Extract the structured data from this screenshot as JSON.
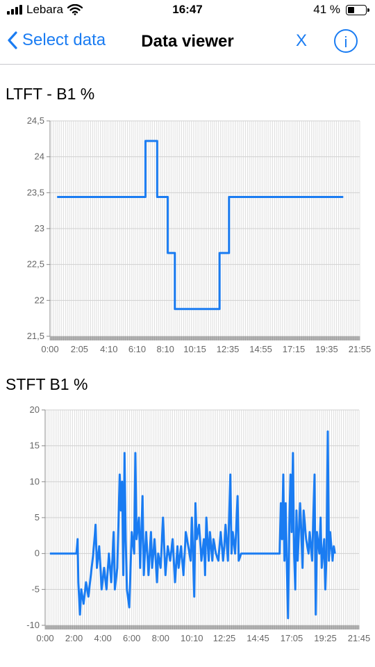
{
  "status_bar": {
    "carrier": "Lebara",
    "time": "16:47",
    "battery_percent": "41 %",
    "battery_level": 0.41
  },
  "nav": {
    "back_label": "Select data",
    "title": "Data viewer",
    "close_label": "X",
    "info_label": "i"
  },
  "chart_data": [
    {
      "type": "line",
      "title": "LTFT - B1   %",
      "xlabel": "",
      "ylabel": "",
      "ylim": [
        21.5,
        24.5
      ],
      "yticks": [
        "21,5",
        "22",
        "22,5",
        "23",
        "23,5",
        "24",
        "24,5"
      ],
      "xticks": [
        "0:00",
        "2:05",
        "4:10",
        "6:10",
        "8:10",
        "10:15",
        "12:35",
        "14:55",
        "17:15",
        "19:35",
        "21:55"
      ],
      "grid": true,
      "series": [
        {
          "color": "#1a7cf2",
          "points": [
            [
              "0:30",
              23.44
            ],
            [
              "6:45",
              23.44
            ],
            [
              "6:45",
              24.22
            ],
            [
              "7:35",
              24.22
            ],
            [
              "7:35",
              23.44
            ],
            [
              "8:20",
              23.44
            ],
            [
              "8:20",
              22.66
            ],
            [
              "8:50",
              22.66
            ],
            [
              "8:50",
              21.88
            ],
            [
              "12:00",
              21.88
            ],
            [
              "12:00",
              22.66
            ],
            [
              "12:40",
              22.66
            ],
            [
              "12:40",
              23.44
            ],
            [
              "20:45",
              23.44
            ]
          ]
        }
      ]
    },
    {
      "type": "line",
      "title": "STFT B1   %",
      "xlabel": "",
      "ylabel": "",
      "ylim": [
        -10,
        20
      ],
      "yticks": [
        "-10",
        "-5",
        "0",
        "5",
        "10",
        "15",
        "20"
      ],
      "xticks": [
        "0:00",
        "2:00",
        "4:00",
        "6:00",
        "8:00",
        "10:10",
        "12:25",
        "14:45",
        "17:05",
        "19:25",
        "21:45"
      ],
      "grid": true,
      "series": [
        {
          "color": "#1a7cf2",
          "points": [
            [
              "0:20",
              0
            ],
            [
              "2:10",
              0
            ],
            [
              "2:15",
              2
            ],
            [
              "2:18",
              -4
            ],
            [
              "2:25",
              -8.5
            ],
            [
              "2:30",
              -5
            ],
            [
              "2:40",
              -7
            ],
            [
              "2:50",
              -4
            ],
            [
              "3:00",
              -6
            ],
            [
              "3:10",
              -3
            ],
            [
              "3:20",
              0
            ],
            [
              "3:30",
              4
            ],
            [
              "3:35",
              -2
            ],
            [
              "3:45",
              1
            ],
            [
              "3:55",
              -5
            ],
            [
              "4:05",
              -2
            ],
            [
              "4:15",
              -5
            ],
            [
              "4:25",
              0
            ],
            [
              "4:35",
              -4
            ],
            [
              "4:45",
              3
            ],
            [
              "4:50",
              -5
            ],
            [
              "5:00",
              -2
            ],
            [
              "5:10",
              11
            ],
            [
              "5:15",
              6
            ],
            [
              "5:20",
              10
            ],
            [
              "5:25",
              -3
            ],
            [
              "5:30",
              14
            ],
            [
              "5:35",
              2
            ],
            [
              "5:40",
              -5
            ],
            [
              "5:50",
              -7.5
            ],
            [
              "5:55",
              -2
            ],
            [
              "6:00",
              3
            ],
            [
              "6:10",
              0
            ],
            [
              "6:15",
              14
            ],
            [
              "6:20",
              2
            ],
            [
              "6:30",
              5
            ],
            [
              "6:35",
              -2
            ],
            [
              "6:45",
              8
            ],
            [
              "6:50",
              -3
            ],
            [
              "7:00",
              3
            ],
            [
              "7:10",
              -3
            ],
            [
              "7:20",
              3
            ],
            [
              "7:25",
              -2
            ],
            [
              "7:35",
              2
            ],
            [
              "7:45",
              -4
            ],
            [
              "7:50",
              0
            ],
            [
              "8:00",
              -2
            ],
            [
              "8:10",
              5
            ],
            [
              "8:20",
              -3
            ],
            [
              "8:30",
              1
            ],
            [
              "8:40",
              -1
            ],
            [
              "8:50",
              2
            ],
            [
              "9:00",
              -4
            ],
            [
              "9:10",
              1
            ],
            [
              "9:15",
              -2
            ],
            [
              "9:25",
              1
            ],
            [
              "9:35",
              -3
            ],
            [
              "9:45",
              3
            ],
            [
              "9:55",
              1
            ],
            [
              "10:05",
              -1
            ],
            [
              "10:10",
              5
            ],
            [
              "10:15",
              0
            ],
            [
              "10:20",
              -6
            ],
            [
              "10:25",
              7
            ],
            [
              "10:30",
              2
            ],
            [
              "10:40",
              4
            ],
            [
              "10:50",
              -1
            ],
            [
              "11:00",
              2
            ],
            [
              "11:05",
              -3
            ],
            [
              "11:10",
              5
            ],
            [
              "11:20",
              -1
            ],
            [
              "11:25",
              3
            ],
            [
              "11:35",
              -1
            ],
            [
              "11:40",
              2
            ],
            [
              "11:50",
              0
            ],
            [
              "12:00",
              -1
            ],
            [
              "12:10",
              3
            ],
            [
              "12:20",
              -1
            ],
            [
              "12:25",
              1
            ],
            [
              "12:30",
              4
            ],
            [
              "12:40",
              -1
            ],
            [
              "12:50",
              11
            ],
            [
              "12:55",
              0
            ],
            [
              "13:00",
              3
            ],
            [
              "13:10",
              0
            ],
            [
              "13:20",
              8
            ],
            [
              "13:25",
              -1
            ],
            [
              "13:35",
              0
            ],
            [
              "13:50",
              0
            ],
            [
              "16:15",
              0
            ],
            [
              "16:20",
              7
            ],
            [
              "16:25",
              2
            ],
            [
              "16:30",
              11
            ],
            [
              "16:35",
              -1
            ],
            [
              "16:40",
              7
            ],
            [
              "16:45",
              -2
            ],
            [
              "16:50",
              -9
            ],
            [
              "16:55",
              4
            ],
            [
              "17:00",
              11
            ],
            [
              "17:05",
              3
            ],
            [
              "17:10",
              14
            ],
            [
              "17:15",
              0
            ],
            [
              "17:20",
              -5
            ],
            [
              "17:25",
              6
            ],
            [
              "17:30",
              -1
            ],
            [
              "17:40",
              7
            ],
            [
              "17:45",
              3
            ],
            [
              "17:50",
              -2
            ],
            [
              "17:55",
              6
            ],
            [
              "18:05",
              2
            ],
            [
              "18:15",
              0
            ],
            [
              "18:20",
              3
            ],
            [
              "18:30",
              -1
            ],
            [
              "18:40",
              11
            ],
            [
              "18:45",
              -8.5
            ],
            [
              "18:50",
              3
            ],
            [
              "19:00",
              0
            ],
            [
              "19:05",
              5
            ],
            [
              "19:10",
              -2
            ],
            [
              "19:20",
              2
            ],
            [
              "19:25",
              -5
            ],
            [
              "19:30",
              0
            ],
            [
              "19:35",
              17
            ],
            [
              "19:40",
              -1
            ],
            [
              "19:45",
              3
            ],
            [
              "19:55",
              -1
            ],
            [
              "20:00",
              1
            ],
            [
              "20:05",
              0
            ]
          ]
        }
      ]
    }
  ]
}
